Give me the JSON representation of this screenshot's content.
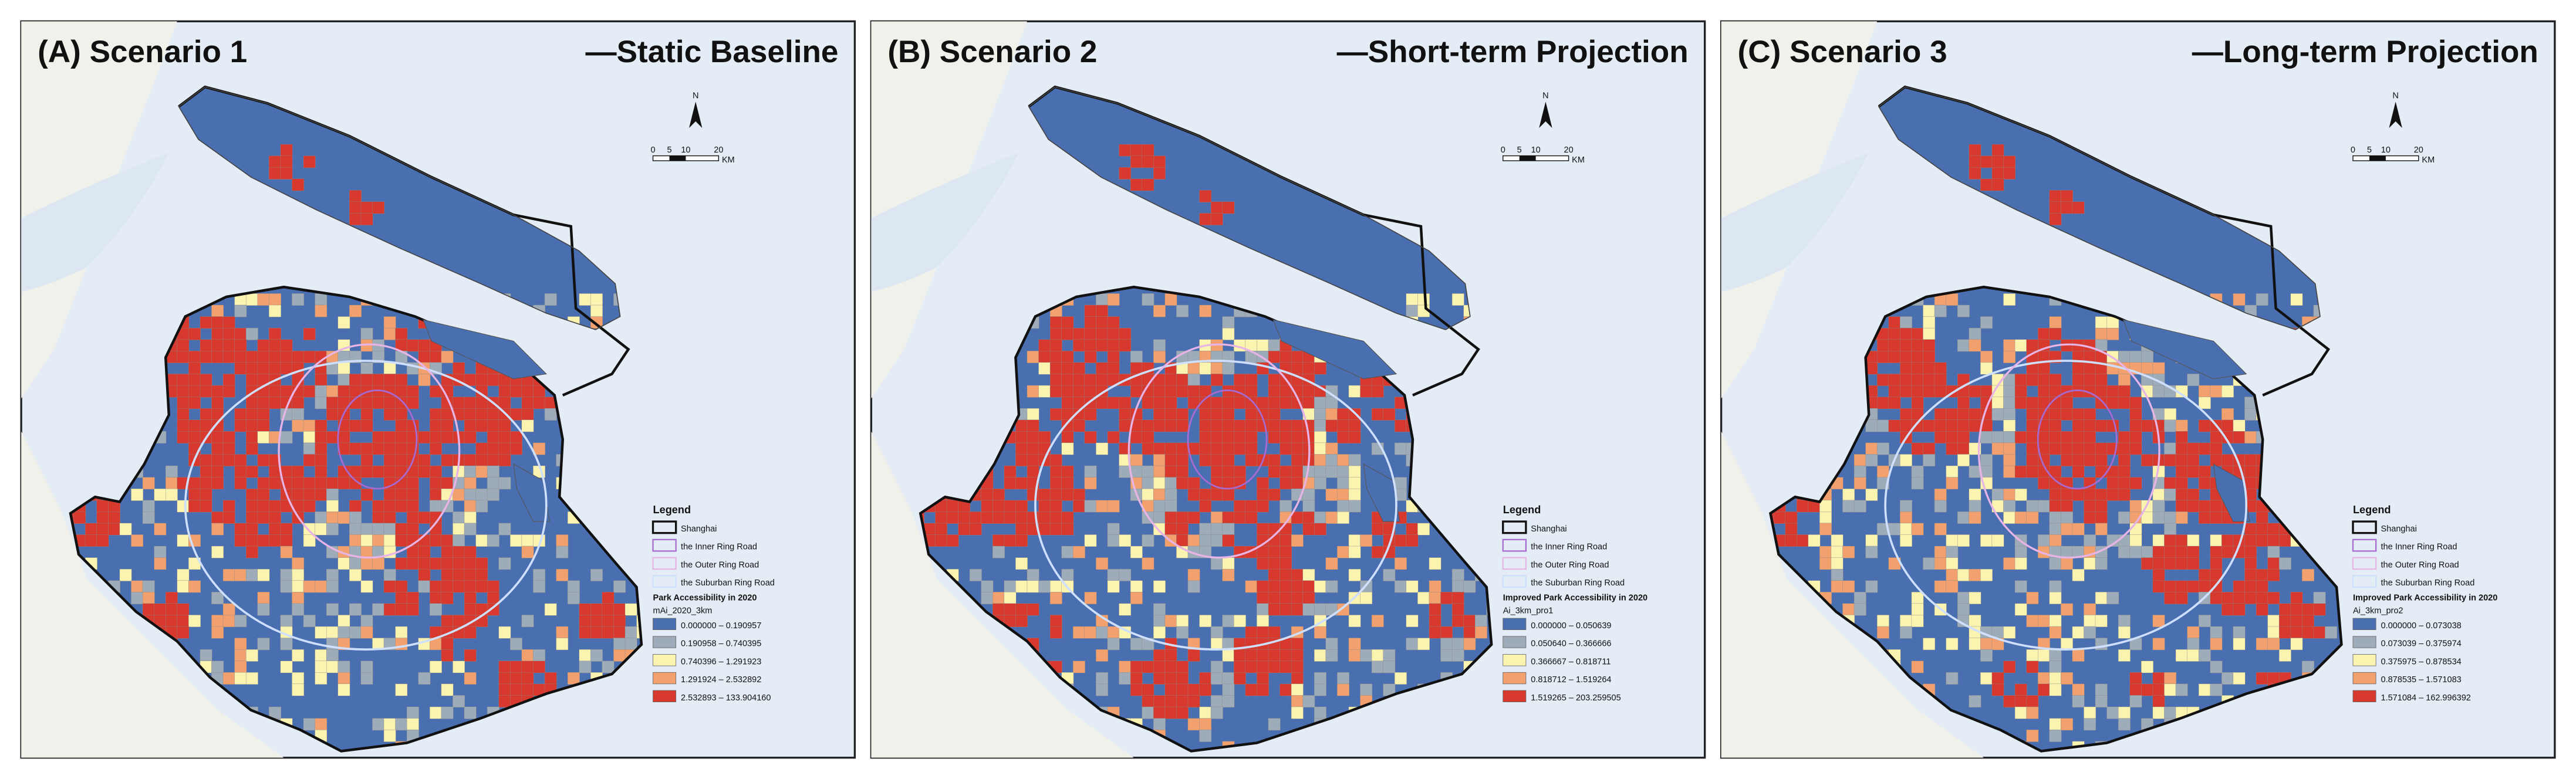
{
  "panels": [
    {
      "label": "(A) Scenario 1",
      "subtitle": "—Static Baseline",
      "legend_title": "Park Accessibility in 2020",
      "field": "mAi_2020_3km",
      "classes": [
        "0.000000 – 0.190957",
        "0.190958 – 0.740395",
        "0.740396 – 1.291923",
        "1.291924 – 2.532892",
        "2.532893 – 133.904160"
      ]
    },
    {
      "label": "(B) Scenario 2",
      "subtitle": "—Short-term Projection",
      "legend_title": "Improved Park Accessibility in 2020",
      "field": "Ai_3km_pro1",
      "classes": [
        "0.000000 – 0.050639",
        "0.050640 – 0.366666",
        "0.366667 – 0.818711",
        "0.818712 – 1.519264",
        "1.519265 – 203.259505"
      ]
    },
    {
      "label": "(C) Scenario 3",
      "subtitle": "—Long-term Projection",
      "legend_title": "Improved Park Accessibility in 2020",
      "field": "Ai_3km_pro2",
      "classes": [
        "0.000000 – 0.073038",
        "0.073039 – 0.375974",
        "0.375975 – 0.878534",
        "0.878535 – 1.571083",
        "1.571084 – 162.996392"
      ]
    }
  ],
  "north": "N",
  "scale": {
    "ticks": [
      "0",
      "5",
      "10",
      "20"
    ],
    "unit": "KM"
  },
  "legend": {
    "title": "Legend",
    "items": [
      "Shanghai",
      "the Inner Ring Road",
      "the Outer Ring Road",
      "the Suburban Ring Road"
    ]
  },
  "class_colors": [
    "#4a6fb0",
    "#9eabb8",
    "#fbf3b0",
    "#f2a06e",
    "#d8392e"
  ]
}
